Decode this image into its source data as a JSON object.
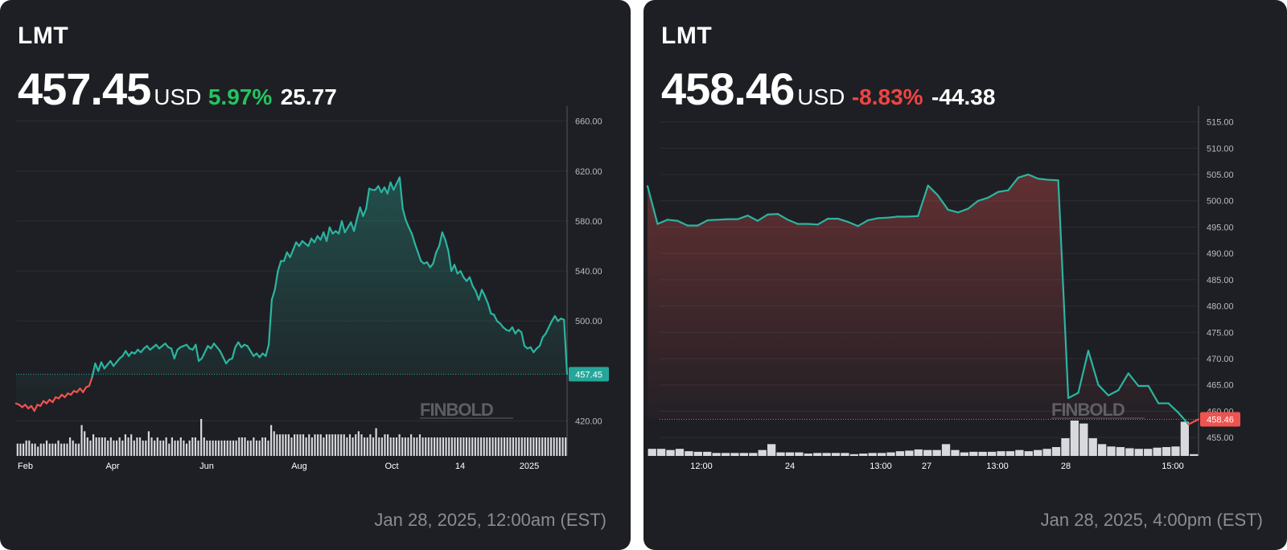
{
  "left": {
    "ticker": "LMT",
    "price": "457.45",
    "currency": "USD",
    "change_pct": "5.97%",
    "change_abs": "25.77",
    "timestamp": "Jan 28, 2025, 12:00am (EST)",
    "watermark": "FINBOLD",
    "price_badge": "457.45",
    "colors": {
      "up": "#22c55e",
      "line_up": "#2bb5a0",
      "line_down": "#ef5350",
      "badge": "#26a69a"
    }
  },
  "right": {
    "ticker": "LMT",
    "price": "458.46",
    "currency": "USD",
    "change_pct": "-8.83%",
    "change_abs": "-44.38",
    "timestamp": "Jan 28, 2025, 4:00pm (EST)",
    "watermark": "FINBOLD",
    "price_badge": "458.46",
    "colors": {
      "down": "#ef4444",
      "line_up": "#2bb5a0",
      "line_down": "#ef5350",
      "badge": "#ef5350"
    }
  },
  "chart_data": [
    {
      "type": "area",
      "title": "LMT",
      "xlabel": "",
      "ylabel": "",
      "x_ticks": [
        "Feb",
        "Apr",
        "Jun",
        "Aug",
        "Oct",
        "14",
        "2025"
      ],
      "y_ticks": [
        "420.00",
        "500.00",
        "540.00",
        "580.00",
        "620.00",
        "660.00"
      ],
      "ylim": [
        392,
        672
      ],
      "reference_price": 457.45,
      "series": [
        {
          "values": [
            434,
            433,
            431,
            433,
            430,
            432,
            428,
            433,
            432,
            436,
            434,
            437,
            435,
            439,
            438,
            441,
            439,
            442,
            441,
            444,
            443,
            446,
            443,
            447,
            448,
            455,
            466,
            460,
            467,
            462,
            465,
            468,
            464,
            467,
            470,
            472,
            476,
            472,
            475,
            474,
            477,
            475,
            478,
            480,
            477,
            479,
            481,
            478,
            480,
            482,
            479,
            478,
            470,
            477,
            479,
            480,
            481,
            478,
            477,
            481,
            468,
            470,
            475,
            480,
            478,
            482,
            479,
            476,
            471,
            466,
            469,
            470,
            479,
            483,
            479,
            481,
            480,
            476,
            472,
            474,
            471,
            474,
            472,
            481,
            517,
            525,
            540,
            548,
            548,
            555,
            551,
            557,
            563,
            560,
            564,
            562,
            560,
            566,
            563,
            568,
            565,
            571,
            564,
            575,
            570,
            572,
            570,
            580,
            571,
            575,
            579,
            572,
            582,
            591,
            584,
            590,
            606,
            605,
            605,
            608,
            603,
            607,
            602,
            611,
            605,
            610,
            615,
            590,
            581,
            575,
            570,
            562,
            555,
            548,
            546,
            547,
            543,
            546,
            555,
            560,
            571,
            565,
            556,
            540,
            545,
            538,
            540,
            535,
            532,
            535,
            528,
            524,
            517,
            525,
            520,
            514,
            506,
            505,
            500,
            498,
            495,
            493,
            492,
            495,
            490,
            493,
            491,
            480,
            478,
            479,
            475,
            478,
            480,
            487,
            490,
            495,
            500,
            504,
            500,
            502,
            501,
            457.45
          ]
        }
      ],
      "volume": [
        4,
        4,
        4,
        5,
        5,
        4,
        4,
        3,
        4,
        4,
        5,
        4,
        4,
        4,
        5,
        4,
        4,
        4,
        6,
        5,
        4,
        4,
        10,
        8,
        6,
        5,
        7,
        6,
        6,
        6,
        6,
        5,
        6,
        5,
        5,
        6,
        5,
        7,
        6,
        7,
        5,
        6,
        6,
        5,
        5,
        8,
        6,
        5,
        6,
        5,
        5,
        6,
        4,
        6,
        5,
        5,
        6,
        5,
        4,
        5,
        6,
        6,
        5,
        12,
        6,
        5,
        5,
        5,
        5,
        5,
        5,
        5,
        5,
        5,
        5,
        5,
        6,
        6,
        6,
        5,
        5,
        6,
        5,
        5,
        6,
        6,
        5,
        10,
        8,
        7,
        7,
        7,
        7,
        7,
        6,
        7,
        7,
        7,
        7,
        6,
        7,
        6,
        7,
        7,
        7,
        6,
        7,
        7,
        7,
        7,
        7,
        7,
        7,
        6,
        7,
        6,
        7,
        8,
        7,
        6,
        6,
        7,
        6,
        9,
        6,
        6,
        7,
        7,
        6,
        6,
        6,
        7,
        6,
        6,
        6,
        7,
        6,
        6,
        7,
        6,
        6,
        6,
        6,
        6,
        6,
        6,
        6,
        6,
        6,
        6,
        6,
        6,
        6,
        6,
        6,
        6,
        6,
        6,
        6,
        6,
        6,
        6,
        6,
        6,
        6,
        6,
        6,
        6,
        6,
        6,
        6,
        6,
        6,
        6,
        6,
        6,
        6,
        6,
        6,
        6,
        6,
        6,
        6,
        6,
        6,
        6,
        6,
        6,
        6
      ]
    },
    {
      "type": "area",
      "title": "LMT",
      "xlabel": "",
      "ylabel": "",
      "x_ticks": [
        "12:00",
        "24",
        "13:00",
        "27",
        "13:00",
        "28",
        "15:00"
      ],
      "y_ticks": [
        "455.00",
        "460.00",
        "465.00",
        "470.00",
        "475.00",
        "480.00",
        "485.00",
        "490.00",
        "495.00",
        "500.00",
        "505.00",
        "510.00",
        "515.00"
      ],
      "ylim": [
        451.5,
        518
      ],
      "reference_price": 458.46,
      "series": [
        {
          "values": [
            502.8,
            495.6,
            496.4,
            496.2,
            495.3,
            495.3,
            496.3,
            496.4,
            496.5,
            496.5,
            497.2,
            496.2,
            497.4,
            497.5,
            496.4,
            495.6,
            495.6,
            495.5,
            496.6,
            496.6,
            496.0,
            495.2,
            496.3,
            496.7,
            496.8,
            497.0,
            497.0,
            497.1,
            502.9,
            501.0,
            498.3,
            497.8,
            498.5,
            500.0,
            500.6,
            501.7,
            502.0,
            504.4,
            505.0,
            504.2,
            504.0,
            503.9,
            462.5,
            463.5,
            471.5,
            465.0,
            463.0,
            464.0,
            467.2,
            464.8,
            464.8,
            461.5,
            461.5,
            459.7,
            457.5,
            458.46
          ]
        }
      ],
      "volume": [
        1.2,
        1.2,
        1,
        1.2,
        0.8,
        0.7,
        0.7,
        0.5,
        0.5,
        0.5,
        0.5,
        0.5,
        1,
        2,
        0.6,
        0.6,
        0.6,
        0.4,
        0.5,
        0.5,
        0.5,
        0.5,
        0.3,
        0.4,
        0.5,
        0.5,
        0.6,
        0.8,
        0.9,
        1.1,
        1.0,
        1.0,
        2.0,
        1.0,
        0.6,
        0.7,
        0.7,
        0.7,
        0.8,
        0.8,
        1.0,
        0.8,
        1.0,
        1.2,
        1.5,
        3.0,
        6.0,
        5.5,
        3.0,
        2.0,
        1.6,
        1.5,
        1.3,
        1.2,
        1.2,
        1.4,
        1.5,
        1.6,
        5.8,
        0.3
      ]
    }
  ]
}
